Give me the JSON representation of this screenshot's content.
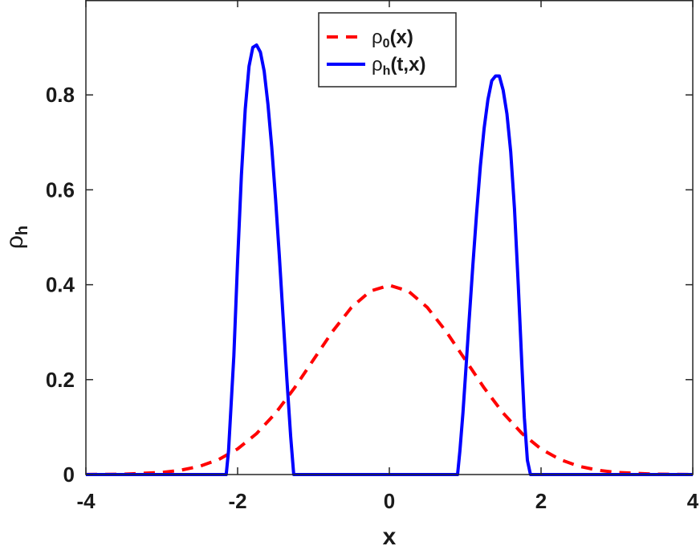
{
  "chart_data": {
    "type": "line",
    "xlabel": "x",
    "ylabel": {
      "base": "ρ",
      "sub": "h"
    },
    "xlim": [
      -4,
      4
    ],
    "ylim": [
      0,
      1.0
    ],
    "xticks": [
      -4,
      -2,
      0,
      2,
      4
    ],
    "xtick_labels": [
      "-4",
      "-2",
      "0",
      "2",
      "4"
    ],
    "yticks": [
      0,
      0.2,
      0.4,
      0.6,
      0.8
    ],
    "ytick_labels": [
      "0",
      "0.2",
      "0.4",
      "0.6",
      "0.8"
    ],
    "grid": false,
    "legend_position": "top-center",
    "series": [
      {
        "name": "ρ0(x)",
        "legend": {
          "base": "ρ",
          "sub": "0",
          "rest": "(x)"
        },
        "color": "#ff0000",
        "style": "dashed",
        "x": [
          -4,
          -3.5,
          -3,
          -2.75,
          -2.5,
          -2.25,
          -2,
          -1.75,
          -1.5,
          -1.25,
          -1,
          -0.75,
          -0.5,
          -0.25,
          0,
          0.25,
          0.5,
          0.75,
          1,
          1.25,
          1.5,
          1.75,
          2,
          2.25,
          2.5,
          2.75,
          3,
          3.5,
          4
        ],
        "y": [
          0.0001,
          0.0009,
          0.0044,
          0.0091,
          0.0175,
          0.0317,
          0.054,
          0.0863,
          0.1295,
          0.1826,
          0.242,
          0.3011,
          0.3521,
          0.3867,
          0.3989,
          0.3867,
          0.3521,
          0.3011,
          0.242,
          0.1826,
          0.1295,
          0.0863,
          0.054,
          0.0317,
          0.0175,
          0.0091,
          0.0044,
          0.0009,
          0.0001
        ]
      },
      {
        "name": "ρh(t,x)",
        "legend": {
          "base": "ρ",
          "sub": "h",
          "rest": "(t,x)"
        },
        "color": "#0000ff",
        "style": "solid",
        "x": [
          -4,
          -2.15,
          -2.12,
          -2.05,
          -2.0,
          -1.95,
          -1.9,
          -1.85,
          -1.8,
          -1.75,
          -1.7,
          -1.65,
          -1.6,
          -1.55,
          -1.5,
          -1.45,
          -1.4,
          -1.35,
          -1.3,
          -1.26,
          -1.0,
          0.9,
          0.93,
          0.97,
          1.0,
          1.05,
          1.1,
          1.15,
          1.2,
          1.25,
          1.3,
          1.35,
          1.4,
          1.45,
          1.5,
          1.55,
          1.6,
          1.65,
          1.7,
          1.75,
          1.78,
          1.82,
          1.86,
          4
        ],
        "y": [
          0,
          0,
          0.05,
          0.25,
          0.45,
          0.63,
          0.77,
          0.86,
          0.9,
          0.905,
          0.89,
          0.85,
          0.78,
          0.69,
          0.58,
          0.46,
          0.33,
          0.2,
          0.08,
          0,
          0,
          0,
          0.05,
          0.13,
          0.2,
          0.32,
          0.44,
          0.55,
          0.65,
          0.73,
          0.79,
          0.83,
          0.84,
          0.84,
          0.81,
          0.76,
          0.68,
          0.56,
          0.4,
          0.22,
          0.12,
          0.03,
          0,
          0
        ]
      }
    ]
  }
}
